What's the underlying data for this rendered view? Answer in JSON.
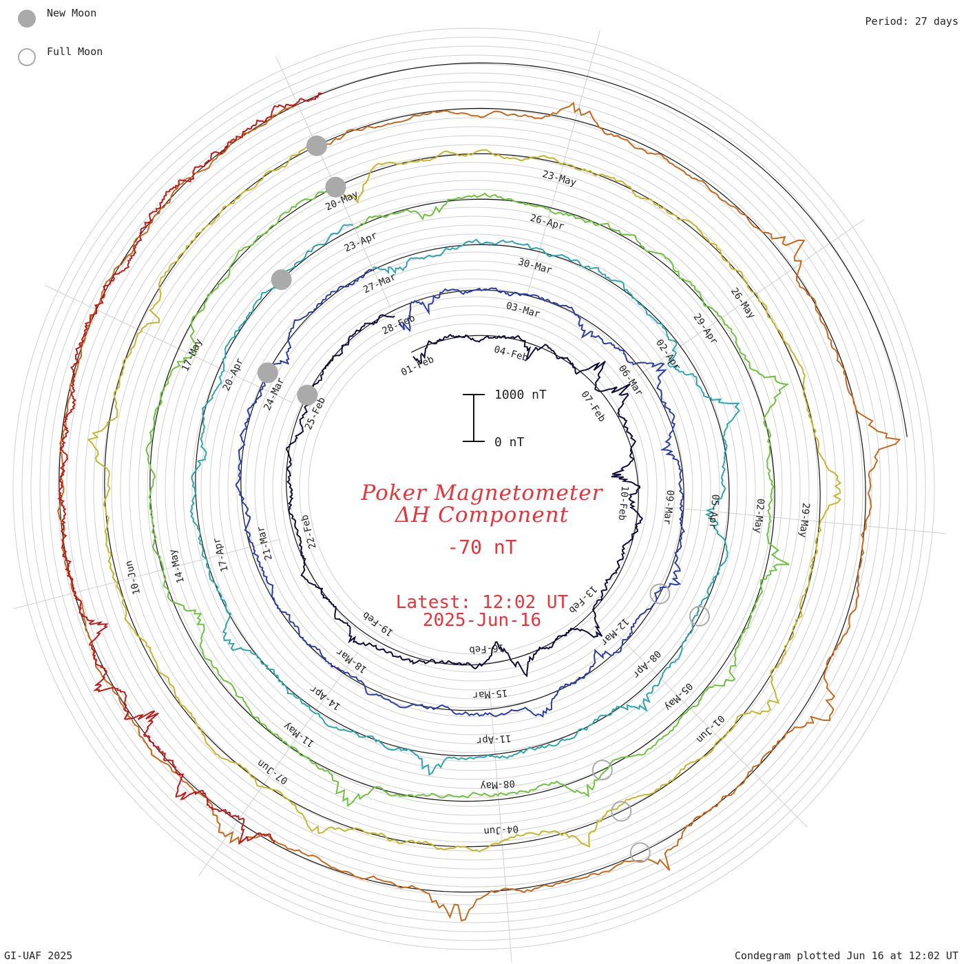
{
  "legend": {
    "new_moon": "New Moon",
    "full_moon": "Full Moon",
    "new_moon_color": "#aaaaaa",
    "full_moon_color": "#aaaaaa"
  },
  "header": {
    "period": "Period: 27 days"
  },
  "footer": {
    "credit": "GI-UAF 2025",
    "plotted": "Condegram plotted Jun 16 at 12:02 UT"
  },
  "center": {
    "title_line1": "Poker Magnetometer",
    "title_line2": "ΔH Component",
    "current_value": "-70 nT",
    "latest_time": "Latest: 12:02 UT",
    "latest_date": "2025-Jun-16",
    "scale_top": "1000 nT",
    "scale_bottom": "0 nT",
    "text_color": "#e8333a"
  },
  "chart_data": {
    "type": "line",
    "subtype": "condegram-spiral",
    "title": "Poker Magnetometer ΔH Component",
    "period_days": 27,
    "units": "nT",
    "scale_bar_nT": [
      0,
      1000
    ],
    "latest_value_nT": -70,
    "latest": "2025-Jun-16 12:02 UT",
    "grid": true,
    "date_labels": [
      "01-Feb",
      "04-Feb",
      "07-Feb",
      "10-Feb",
      "13-Feb",
      "16-Feb",
      "19-Feb",
      "22-Feb",
      "25-Feb",
      "28-Feb",
      "03-Mar",
      "06-Mar",
      "09-Mar",
      "12-Mar",
      "15-Mar",
      "18-Mar",
      "21-Mar",
      "24-Mar",
      "27-Mar",
      "30-Mar",
      "02-Apr",
      "05-Apr",
      "08-Apr",
      "11-Apr",
      "14-Apr",
      "17-Apr",
      "20-Apr",
      "23-Apr",
      "26-Apr",
      "29-Apr",
      "02-May",
      "05-May",
      "08-May",
      "11-May",
      "14-May",
      "17-May",
      "20-May",
      "23-May",
      "26-May",
      "29-May",
      "01-Jun",
      "04-Jun",
      "07-Jun",
      "10-Jun"
    ],
    "series": [
      {
        "start": "2025-Feb-01",
        "end": "2025-Feb-28",
        "color": "#0d0a3c",
        "disturbances_nT": [
          {
            "day": 0.2,
            "dH": -300
          },
          {
            "day": 3.5,
            "dH": -400
          },
          {
            "day": 5.3,
            "dH": 450
          },
          {
            "day": 6.1,
            "dH": 500
          },
          {
            "day": 8.2,
            "dH": -450
          },
          {
            "day": 9.0,
            "dH": -300
          },
          {
            "day": 12.3,
            "dH": 400
          },
          {
            "day": 14.2,
            "dH": 450
          },
          {
            "day": 14.7,
            "dH": -350
          },
          {
            "day": 18.2,
            "dH": 300
          }
        ]
      },
      {
        "start": "2025-Feb-28",
        "end": "2025-Mar-27",
        "color": "#2a3ca8",
        "disturbances_nT": [
          {
            "day": 0.1,
            "dH": -500
          },
          {
            "day": 0.8,
            "dH": -350
          },
          {
            "day": 4.5,
            "dH": -300
          },
          {
            "day": 6.1,
            "dH": 400
          },
          {
            "day": 7.7,
            "dH": -300
          },
          {
            "day": 10.4,
            "dH": 300
          },
          {
            "day": 12.6,
            "dH": -350
          },
          {
            "day": 14.0,
            "dH": 300
          },
          {
            "day": 24.7,
            "dH": -200
          }
        ]
      },
      {
        "start": "2025-Mar-27",
        "end": "2025-Apr-23",
        "color": "#2aa6b0",
        "disturbances_nT": [
          {
            "day": 0.4,
            "dH": -250
          },
          {
            "day": 6.2,
            "dH": -400
          },
          {
            "day": 7.3,
            "dH": 450
          },
          {
            "day": 9.1,
            "dH": -350
          },
          {
            "day": 12.5,
            "dH": 300
          },
          {
            "day": 16.0,
            "dH": 350
          },
          {
            "day": 19.7,
            "dH": 300
          },
          {
            "day": 22.6,
            "dH": -250
          }
        ]
      },
      {
        "start": "2025-Apr-23",
        "end": "2025-May-20",
        "color": "#6cc23a",
        "disturbances_nT": [
          {
            "day": 1.2,
            "dH": -300
          },
          {
            "day": 7.2,
            "dH": 450
          },
          {
            "day": 9.6,
            "dH": 400
          },
          {
            "day": 11.3,
            "dH": 350
          },
          {
            "day": 13.8,
            "dH": 300
          },
          {
            "day": 17.0,
            "dH": 500
          },
          {
            "day": 20.2,
            "dH": -400
          },
          {
            "day": 24.0,
            "dH": -300
          }
        ]
      },
      {
        "start": "2025-May-20",
        "end": "2025-Jun-16",
        "color": "#c8b428",
        "disturbances_nT": [
          {
            "day": 0.2,
            "dH": -300
          },
          {
            "day": 8.6,
            "dH": 400
          },
          {
            "day": 11.3,
            "dH": 450
          },
          {
            "day": 14.0,
            "dH": 400
          },
          {
            "day": 17.2,
            "dH": 350
          },
          {
            "day": 22.6,
            "dH": 450
          },
          {
            "day": 24.2,
            "dH": -350
          }
        ]
      },
      {
        "start": "2025-May-20",
        "end": "2025-Jun-16",
        "color": "#c8661a",
        "disturbances_nT": [
          {
            "day": 3.0,
            "dH": 350
          },
          {
            "day": 5.8,
            "dH": 450
          },
          {
            "day": 8.1,
            "dH": 500
          },
          {
            "day": 11.0,
            "dH": 550
          },
          {
            "day": 13.3,
            "dH": 450
          },
          {
            "day": 15.5,
            "dH": 600
          },
          {
            "day": 18.0,
            "dH": 500
          }
        ]
      },
      {
        "start": "2025-Jun-07",
        "end": "2025-Jun-16",
        "color": "#c01818",
        "disturbances_nT": [
          {
            "day": 0.8,
            "dH": 300
          },
          {
            "day": 3.0,
            "dH": 450
          },
          {
            "day": 5.3,
            "dH": -500
          },
          {
            "day": 6.8,
            "dH": 350
          },
          {
            "day": 8.4,
            "dH": -350
          }
        ]
      }
    ]
  }
}
